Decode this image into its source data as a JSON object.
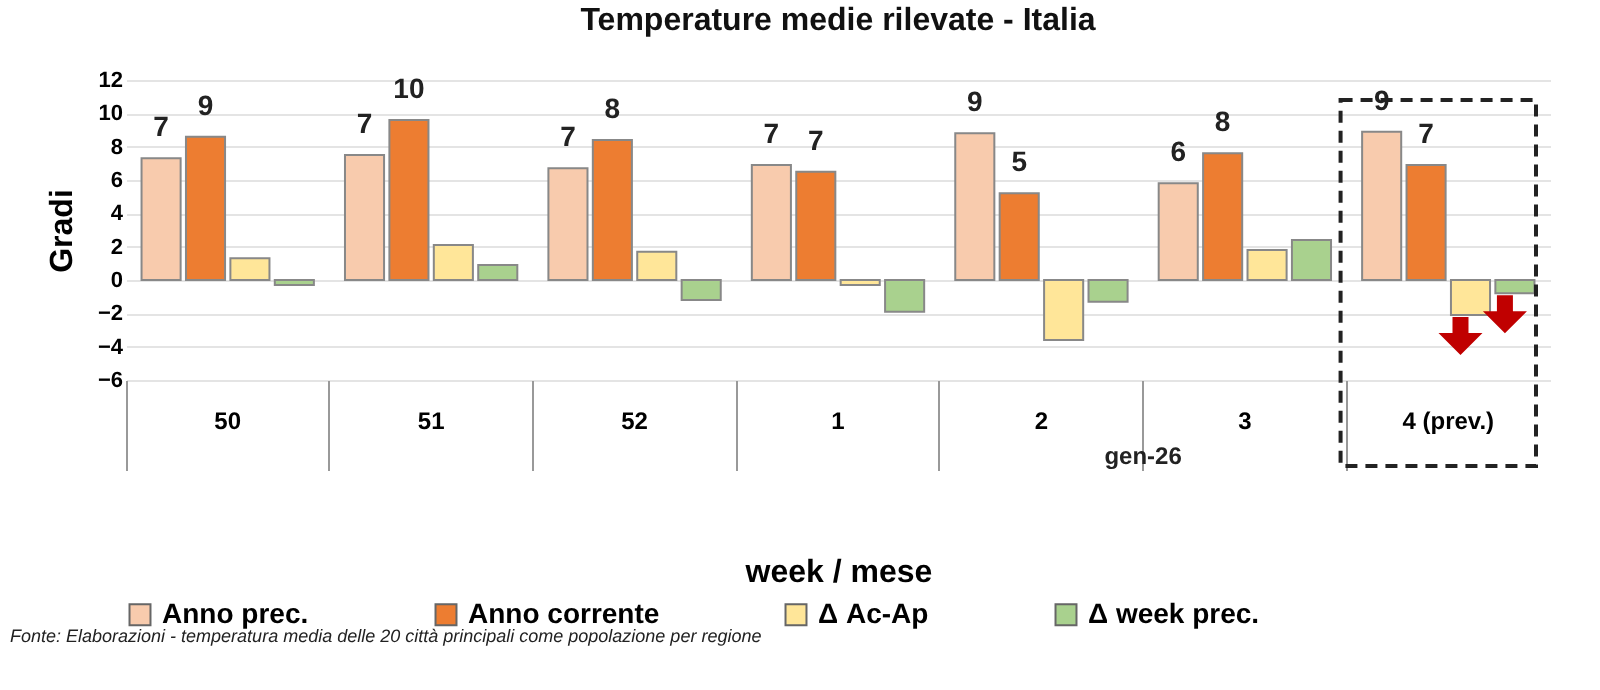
{
  "chart_data": {
    "type": "bar",
    "title": "Temperature medie rilevate - Italia",
    "xlabel": "week / mese",
    "ylabel": "Gradi",
    "categories": [
      "50",
      "51",
      "52",
      "1",
      "2",
      "3",
      "4 (prev.)"
    ],
    "series": [
      {
        "name": "Anno prec.",
        "color": "#f8cbad",
        "values": [
          7.3,
          7.5,
          6.7,
          6.9,
          8.8,
          5.8,
          8.9
        ],
        "value_labels": [
          "7",
          "7",
          "7",
          "7",
          "9",
          "6",
          "9"
        ]
      },
      {
        "name": "Anno corrente",
        "color": "#ed7d31",
        "values": [
          8.6,
          9.6,
          8.4,
          6.5,
          5.2,
          7.6,
          6.9
        ],
        "value_labels": [
          "9",
          "10",
          "8",
          "7",
          "5",
          "8",
          "7"
        ]
      },
      {
        "name": "Δ Ac-Ap",
        "color": "#ffe699",
        "values": [
          1.3,
          2.1,
          1.7,
          -0.3,
          -3.6,
          1.8,
          -2.1
        ]
      },
      {
        "name": "Δ week prec.",
        "color": "#a9d18e",
        "values": [
          -0.3,
          0.9,
          -1.2,
          -1.9,
          -1.3,
          2.4,
          -0.8
        ]
      }
    ],
    "ylim": [
      -6,
      12
    ],
    "yticks": [
      -6,
      -4,
      -2,
      0,
      2,
      4,
      6,
      8,
      10,
      12
    ],
    "grid": "y",
    "legend": "bottom",
    "annotations": [
      "gen-26",
      "Fonte: Elaborazioni - temperatura media delle 20 città principali come popolazione per regione"
    ]
  }
}
